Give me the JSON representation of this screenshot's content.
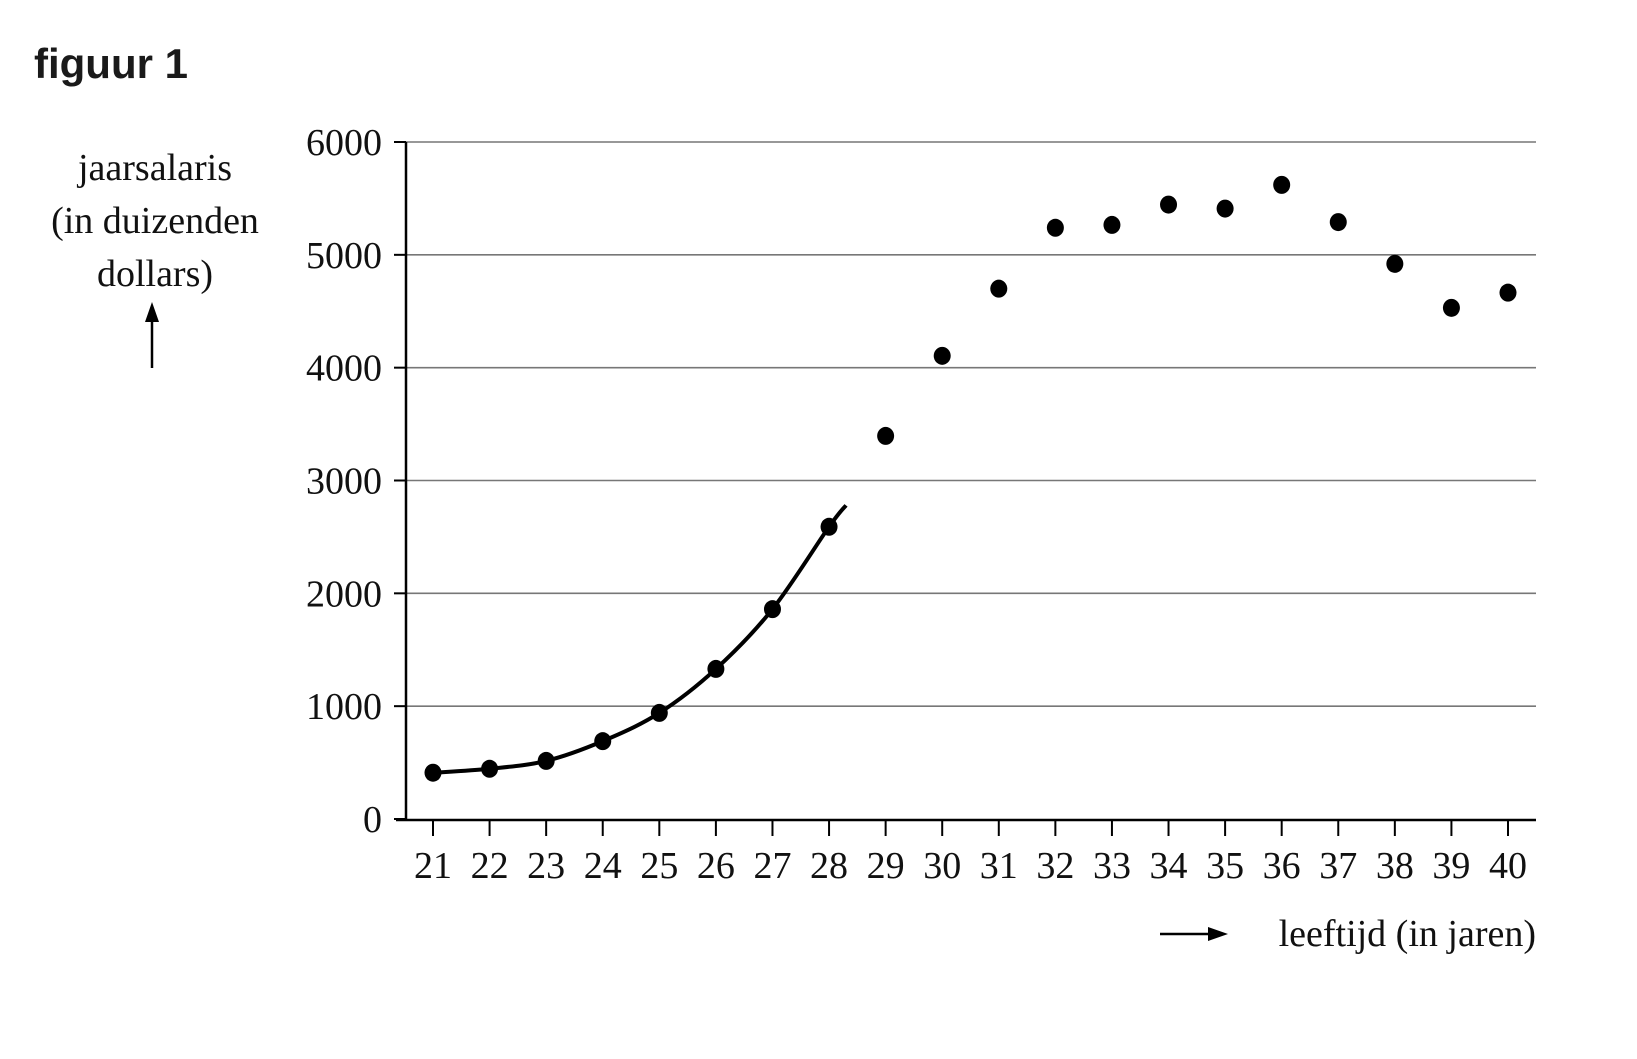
{
  "figure": {
    "title": "figuur 1",
    "ylabel_lines": [
      "jaarsalaris",
      "(in duizenden",
      "dollars)"
    ],
    "xlabel": "leeftijd (in jaren)"
  },
  "chart_data": {
    "type": "scatter",
    "title": "figuur 1",
    "xlabel": "leeftijd (in jaren)",
    "ylabel": "jaarsalaris (in duizenden dollars)",
    "x": [
      21,
      22,
      23,
      24,
      25,
      26,
      27,
      28,
      29,
      30,
      31,
      32,
      33,
      34,
      35,
      36,
      37,
      38,
      39,
      40
    ],
    "series": [
      {
        "name": "jaarsalaris",
        "values": [
          410,
          445,
          515,
          690,
          940,
          1330,
          1860,
          2590,
          3395,
          4105,
          4700,
          5240,
          5265,
          5445,
          5410,
          5620,
          5290,
          4920,
          4530,
          4665
        ]
      },
      {
        "name": "curve (fit 21-28)",
        "type": "line",
        "x": [
          21,
          22,
          23,
          24,
          25,
          26,
          27,
          28,
          28.3
        ],
        "values": [
          410,
          445,
          515,
          690,
          940,
          1330,
          1860,
          2590,
          2780
        ]
      }
    ],
    "xticks": [
      "21",
      "22",
      "23",
      "24",
      "25",
      "26",
      "27",
      "28",
      "29",
      "30",
      "31",
      "32",
      "33",
      "34",
      "35",
      "36",
      "37",
      "38",
      "39",
      "40"
    ],
    "yticks": [
      "0",
      "1000",
      "2000",
      "3000",
      "4000",
      "5000",
      "6000"
    ],
    "xlim": [
      20.5,
      40.5
    ],
    "ylim": [
      0,
      6000
    ],
    "grid": "horizontal",
    "legend": "none"
  }
}
